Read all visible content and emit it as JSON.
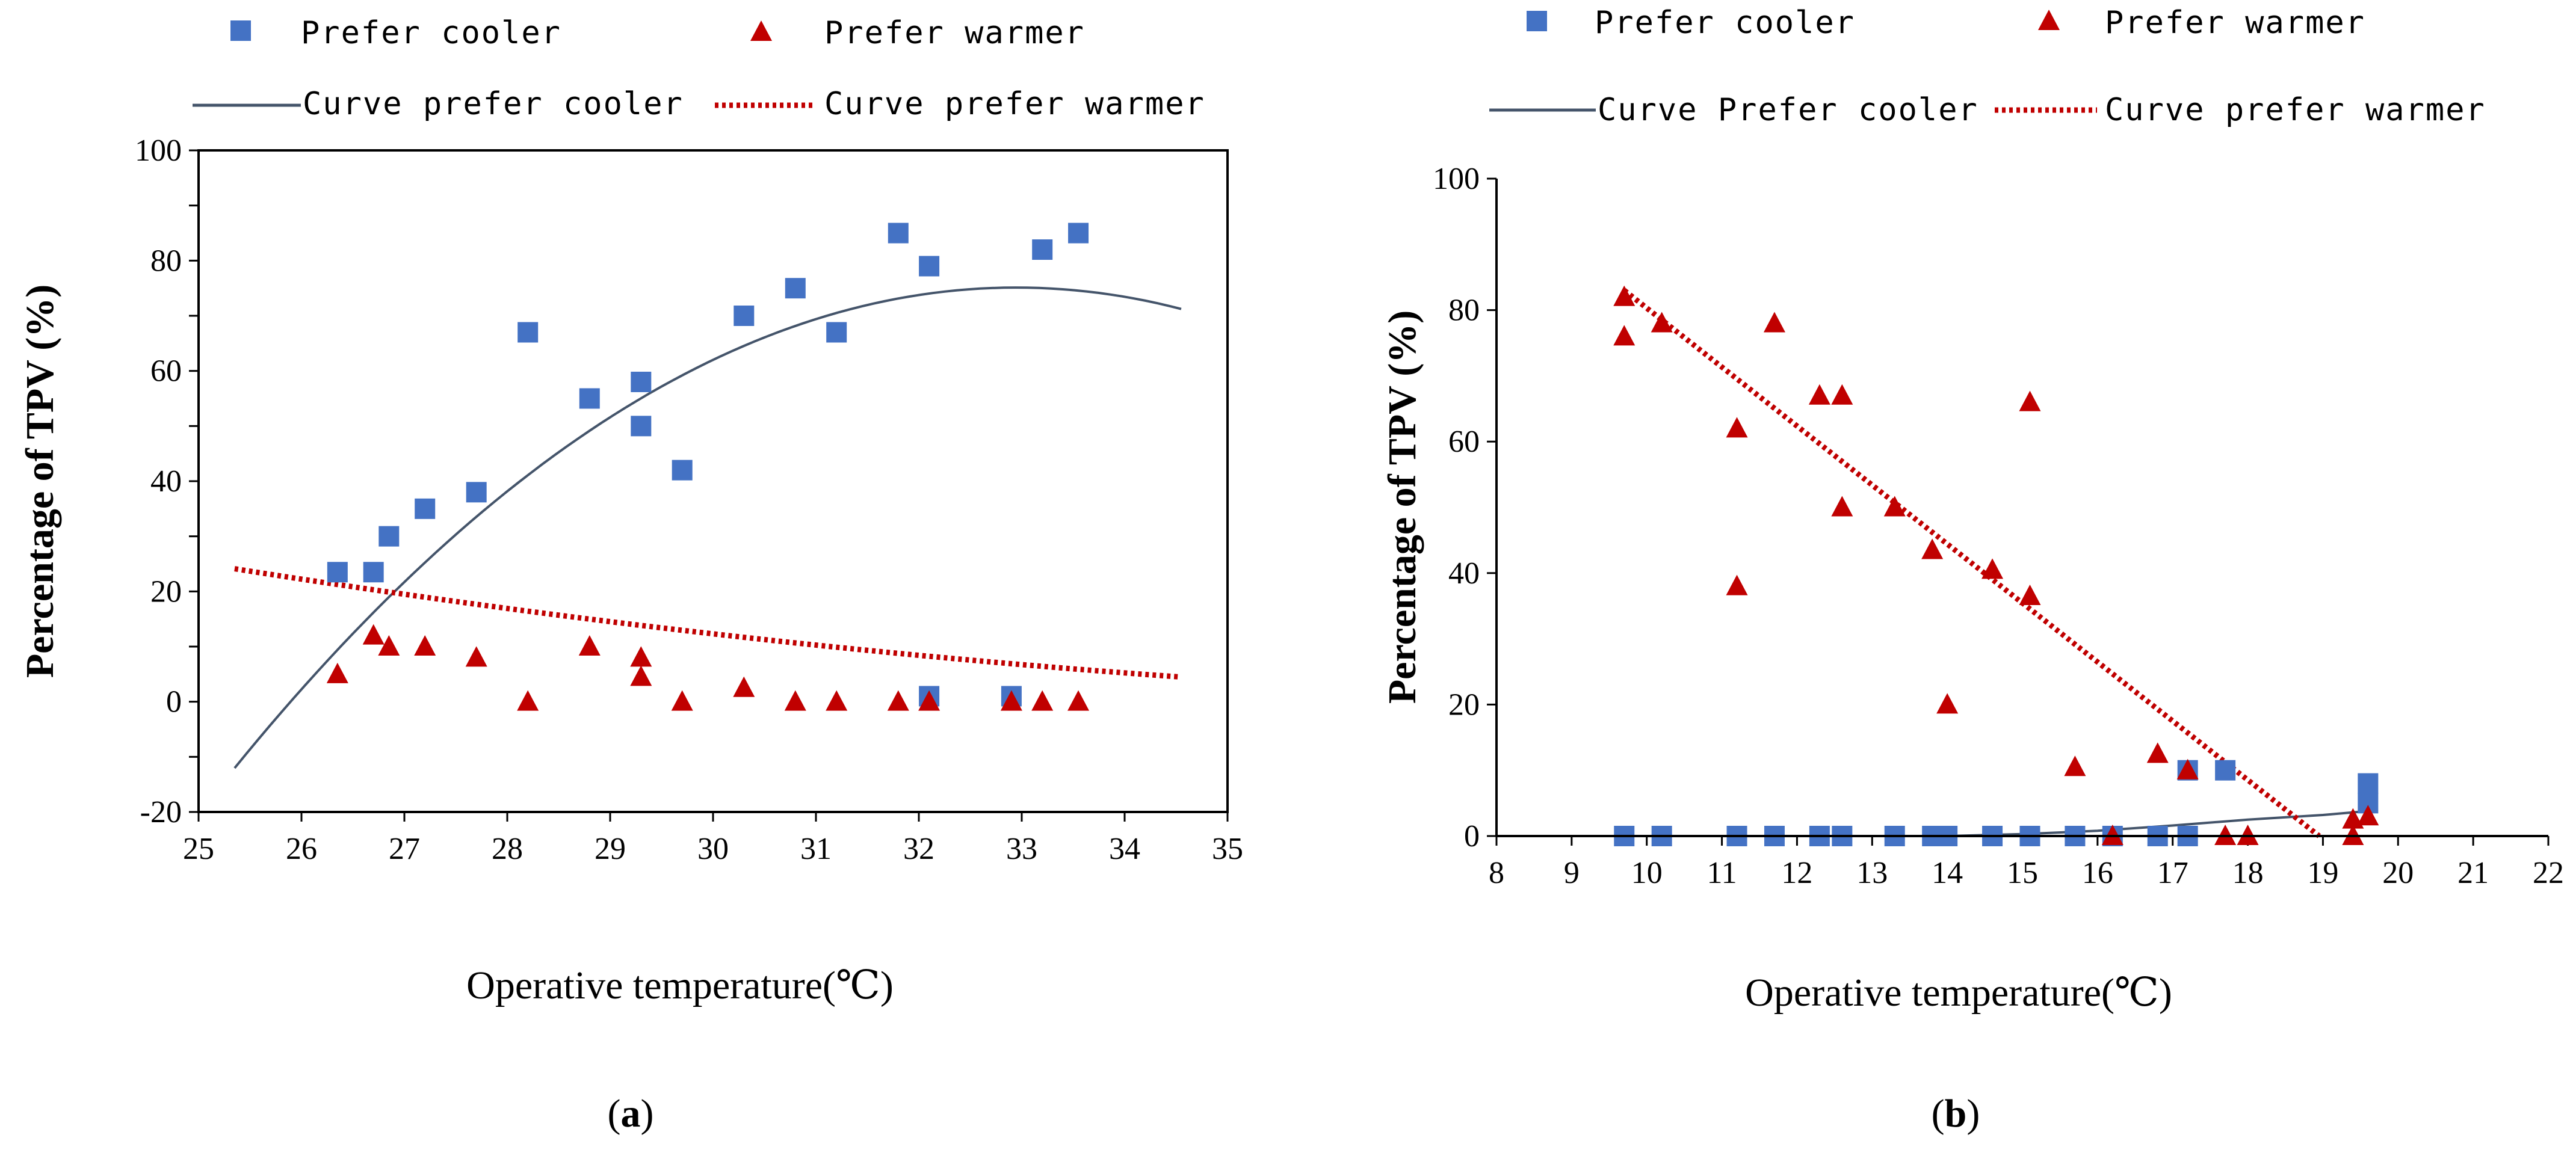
{
  "colors": {
    "cooler": "#4472C4",
    "warmer": "#C00000",
    "curve_cooler": "#44546A",
    "curve_warmer": "#C00000"
  },
  "chart_data": [
    {
      "panel_id": "a",
      "panel_label": "(a)",
      "type": "scatter",
      "xlabel": "Operative temperature(℃)",
      "ylabel": "Percentage of TPV (%)",
      "xlim": [
        25,
        35
      ],
      "ylim": [
        -20,
        100
      ],
      "xticks": [
        25,
        26,
        27,
        28,
        29,
        30,
        31,
        32,
        33,
        34,
        35
      ],
      "yticks": [
        -20,
        0,
        20,
        40,
        60,
        80,
        100
      ],
      "legend": {
        "cooler": "Prefer cooler",
        "warmer": "Prefer warmer",
        "curve_cooler": "Curve prefer cooler",
        "curve_warmer": "Curve prefer warmer"
      },
      "series": [
        {
          "name": "Prefer cooler",
          "marker": "square",
          "points": [
            [
              26.35,
              23.5
            ],
            [
              26.7,
              23.5
            ],
            [
              26.85,
              30
            ],
            [
              27.2,
              35
            ],
            [
              27.7,
              38
            ],
            [
              28.2,
              67
            ],
            [
              28.8,
              55
            ],
            [
              29.3,
              58
            ],
            [
              29.3,
              50
            ],
            [
              29.7,
              42
            ],
            [
              30.3,
              70
            ],
            [
              30.8,
              75
            ],
            [
              31.2,
              67
            ],
            [
              31.8,
              85
            ],
            [
              32.1,
              79
            ],
            [
              32.1,
              1
            ],
            [
              32.9,
              1
            ],
            [
              33.2,
              82
            ],
            [
              33.55,
              85
            ]
          ]
        },
        {
          "name": "Prefer warmer",
          "marker": "triangle",
          "points": [
            [
              26.35,
              5
            ],
            [
              26.7,
              12
            ],
            [
              26.85,
              10
            ],
            [
              27.2,
              10
            ],
            [
              27.7,
              8
            ],
            [
              28.2,
              0
            ],
            [
              28.8,
              10
            ],
            [
              29.3,
              8
            ],
            [
              29.3,
              4.5
            ],
            [
              29.7,
              0
            ],
            [
              30.3,
              2.5
            ],
            [
              30.8,
              0
            ],
            [
              31.2,
              0
            ],
            [
              31.8,
              0
            ],
            [
              32.1,
              0
            ],
            [
              32.9,
              0
            ],
            [
              33.2,
              0
            ],
            [
              33.55,
              0
            ]
          ]
        },
        {
          "name": "Curve prefer cooler",
          "style": "solid",
          "fit": "poly2",
          "coeffs": [
            -1.51,
            99.5,
            -1564
          ],
          "x_range": [
            25.35,
            34.55
          ]
        },
        {
          "name": "Curve prefer warmer",
          "style": "dotted",
          "fit": "poly2",
          "coeffs": [
            0.0889,
            -7.46,
            156.1
          ],
          "x_range": [
            25.35,
            34.55
          ]
        }
      ]
    },
    {
      "panel_id": "b",
      "panel_label": "(b)",
      "type": "scatter",
      "xlabel": "Operative temperature(℃)",
      "ylabel": "Percentage of  TPV (%)",
      "xlim": [
        8,
        22
      ],
      "ylim": [
        0,
        100
      ],
      "xticks": [
        8,
        9,
        10,
        11,
        12,
        13,
        14,
        15,
        16,
        17,
        18,
        19,
        20,
        21,
        22
      ],
      "yticks": [
        0,
        20,
        40,
        60,
        80,
        100
      ],
      "legend": {
        "cooler": "Prefer cooler",
        "warmer": "Prefer warmer",
        "curve_cooler": "Curve Prefer cooler",
        "curve_warmer": "Curve prefer warmer"
      },
      "series": [
        {
          "name": "Prefer cooler",
          "marker": "square",
          "points": [
            [
              9.7,
              0
            ],
            [
              10.2,
              0
            ],
            [
              11.2,
              0
            ],
            [
              11.7,
              0
            ],
            [
              12.3,
              0
            ],
            [
              12.6,
              0
            ],
            [
              13.3,
              0
            ],
            [
              13.8,
              0
            ],
            [
              14.0,
              0
            ],
            [
              14.6,
              0
            ],
            [
              15.1,
              0
            ],
            [
              15.7,
              0
            ],
            [
              16.2,
              0
            ],
            [
              16.8,
              0
            ],
            [
              17.2,
              0
            ],
            [
              17.2,
              10
            ],
            [
              17.7,
              10
            ],
            [
              19.6,
              5
            ],
            [
              19.6,
              8
            ]
          ]
        },
        {
          "name": "Prefer warmer",
          "marker": "triangle",
          "points": [
            [
              9.7,
              82
            ],
            [
              9.7,
              76
            ],
            [
              10.2,
              78
            ],
            [
              11.2,
              62
            ],
            [
              11.2,
              38
            ],
            [
              11.7,
              78
            ],
            [
              12.3,
              67
            ],
            [
              12.6,
              67
            ],
            [
              12.6,
              50
            ],
            [
              13.3,
              50
            ],
            [
              13.8,
              43.5
            ],
            [
              14.0,
              20
            ],
            [
              14.6,
              40.5
            ],
            [
              15.1,
              66
            ],
            [
              15.1,
              36.5
            ],
            [
              15.7,
              10.5
            ],
            [
              16.2,
              0
            ],
            [
              16.8,
              12.5
            ],
            [
              17.2,
              10
            ],
            [
              17.7,
              0
            ],
            [
              18.0,
              0
            ],
            [
              19.4,
              0
            ],
            [
              19.4,
              2.5
            ],
            [
              19.6,
              3
            ]
          ]
        },
        {
          "name": "Curve Prefer cooler",
          "style": "solid",
          "fit": "curve",
          "points": [
            [
              10.2,
              0
            ],
            [
              14.0,
              0
            ],
            [
              15.0,
              0.3
            ],
            [
              16.0,
              0.8
            ],
            [
              17.0,
              1.6
            ],
            [
              18.0,
              2.5
            ],
            [
              19.0,
              3.2
            ],
            [
              19.6,
              3.8
            ]
          ]
        },
        {
          "name": "Curve prefer warmer",
          "style": "dotted",
          "fit": "linear",
          "points": [
            [
              9.7,
              83
            ],
            [
              18.95,
              0
            ]
          ]
        }
      ]
    }
  ]
}
